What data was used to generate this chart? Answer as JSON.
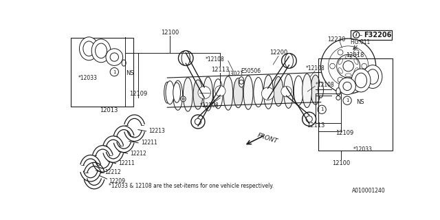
{
  "background_color": "#ffffff",
  "fig_ref": "F32206",
  "drawing_ref": "A010001240",
  "note": "*12033 & 12108 are the set-items for one vehicle respectively.",
  "line_color": "#1a1a1a",
  "text_color": "#1a1a1a"
}
